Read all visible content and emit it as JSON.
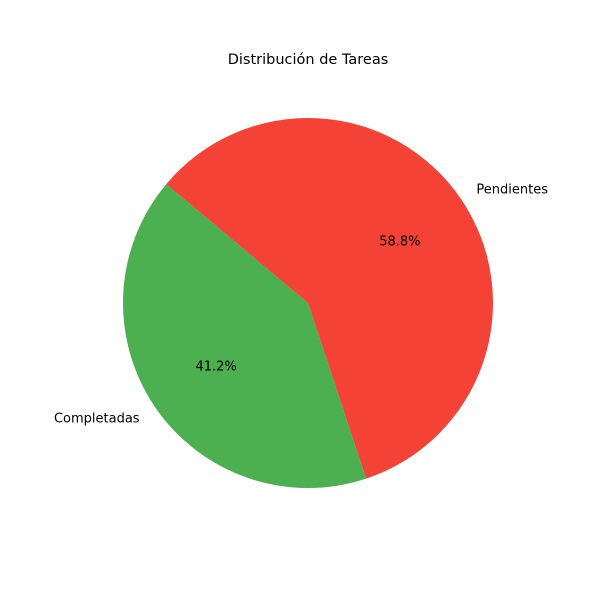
{
  "chart_data": {
    "type": "pie",
    "title": "Distribución de Tareas",
    "slices": [
      {
        "label": "Completadas",
        "value": 41.2,
        "pct_label": "41.2%",
        "color": "#4caf50"
      },
      {
        "label": "Pendientes",
        "value": 58.8,
        "pct_label": "58.8%",
        "color": "#f44336"
      }
    ],
    "start_angle_deg": 140,
    "direction": "counterclockwise",
    "legend": "none"
  }
}
